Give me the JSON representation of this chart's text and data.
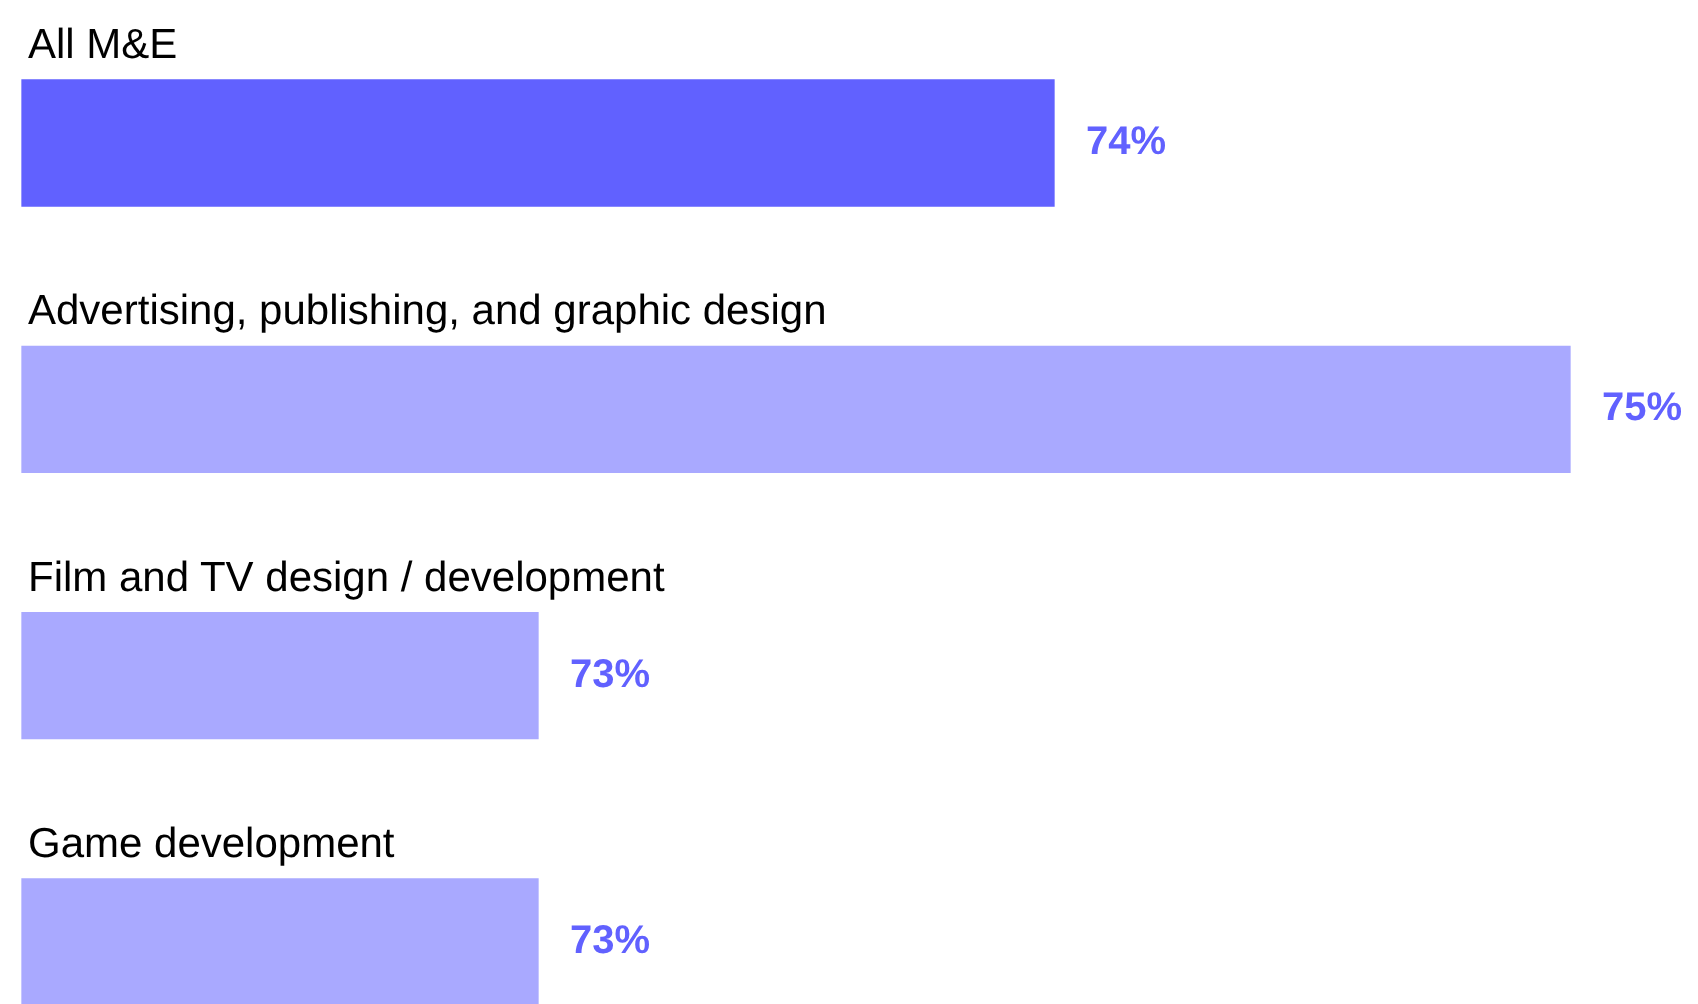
{
  "chart_data": {
    "type": "bar",
    "orientation": "horizontal",
    "categories": [
      "All M&E",
      "Advertising, publishing, and graphic design",
      "Film and TV design / development",
      "Game development"
    ],
    "values": [
      74,
      75,
      73,
      73
    ],
    "value_labels": [
      "74%",
      "75%",
      "73%",
      "73%"
    ],
    "colors": [
      "#6161ff",
      "#a9a9ff",
      "#a9a9ff",
      "#a9a9ff"
    ],
    "xlim": [
      72,
      75
    ]
  }
}
